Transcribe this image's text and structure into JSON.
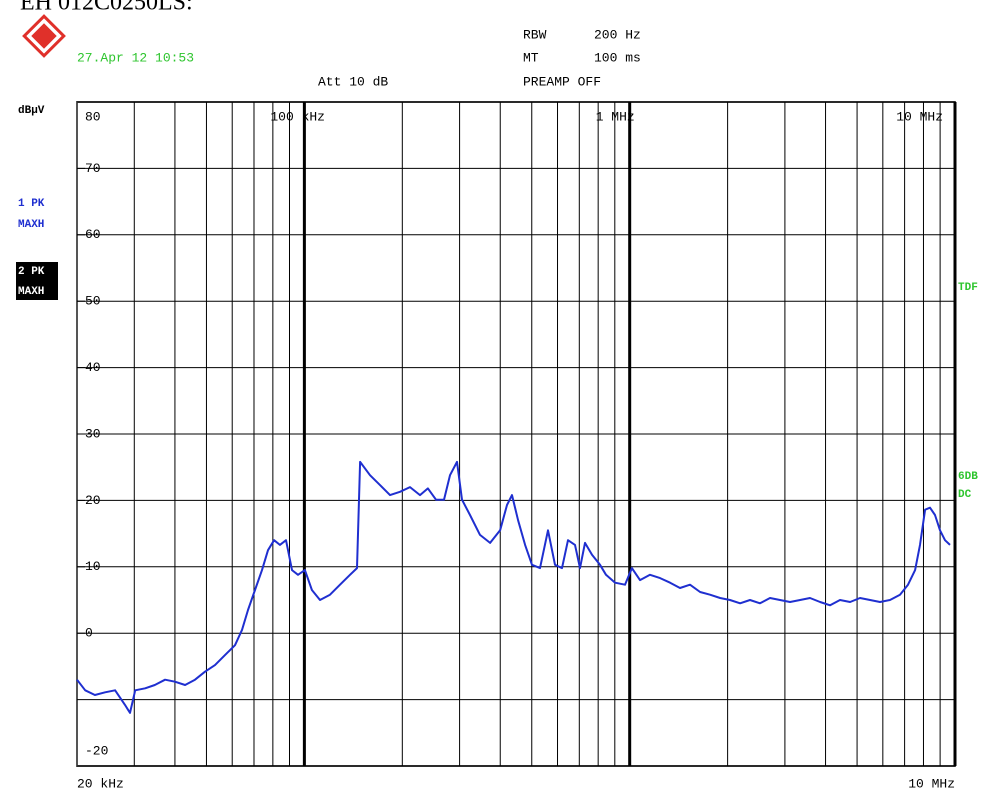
{
  "header": {
    "title": "EH 012C0250LS:",
    "date": "27.Apr 12 10:53",
    "rbw_label": "RBW",
    "rbw_value": "200 Hz",
    "mt_label": "MT",
    "mt_value": "100 ms",
    "att": "Att 10 dB",
    "preamp": "PREAMP OFF"
  },
  "side": {
    "unit": "dBµV",
    "trace1": [
      "1 PK",
      "MAXH"
    ],
    "trace2": [
      "2 PK",
      "MAXH"
    ],
    "tdf": "TDF",
    "detector": [
      "6DB",
      "DC"
    ]
  },
  "chart_data": {
    "type": "line",
    "log_x": true,
    "grid": true,
    "color": "#1f2fd0",
    "xlim": [
      20000,
      10000000
    ],
    "ylim": [
      -20,
      80
    ],
    "start": {
      "value": 20000,
      "label": "20 kHz"
    },
    "stop": {
      "value": 10000000,
      "label": "10 MHz"
    },
    "xticks": [
      {
        "value": 100000,
        "label": "100 kHz"
      },
      {
        "value": 1000000,
        "label": "1 MHz"
      },
      {
        "value": 10000000,
        "label": "10 MHz"
      }
    ],
    "xgrid": [
      30000,
      40000,
      50000,
      60000,
      70000,
      80000,
      90000,
      200000,
      300000,
      400000,
      500000,
      600000,
      700000,
      800000,
      900000,
      2000000,
      3000000,
      4000000,
      5000000,
      6000000,
      7000000,
      8000000,
      9000000
    ],
    "yticks": [
      80,
      70,
      60,
      50,
      40,
      30,
      20,
      10,
      0,
      {
        "value": -10,
        "label": null
      },
      -20
    ],
    "x": [
      20000,
      21200,
      22700,
      24400,
      26200,
      28100,
      29100,
      30200,
      32400,
      34700,
      37300,
      40000,
      43000,
      46100,
      49500,
      53100,
      57000,
      61200,
      64300,
      67100,
      70500,
      74100,
      77300,
      80700,
      84100,
      87800,
      91600,
      95600,
      100400,
      105500,
      111700,
      119900,
      128700,
      138100,
      145100,
      148300,
      159100,
      170800,
      183300,
      196800,
      211200,
      226700,
      239800,
      253800,
      268700,
      280400,
      294600,
      305200,
      323000,
      346700,
      372200,
      399500,
      419700,
      434800,
      453800,
      476900,
      501000,
      530200,
      561000,
      589500,
      619400,
      646300,
      679100,
      703600,
      729000,
      766100,
      810600,
      845800,
      901600,
      967300,
      1016000,
      1076000,
      1155000,
      1240000,
      1331000,
      1428000,
      1533000,
      1646000,
      1766000,
      1896000,
      2034000,
      2184000,
      2344000,
      2516000,
      2700000,
      2898000,
      3111000,
      3340000,
      3584000,
      3848000,
      4130000,
      4432000,
      4758000,
      5106000,
      5482000,
      5882000,
      6314000,
      6776000,
      7172000,
      7538000,
      7808000,
      8090000,
      8380000,
      8682000,
      8994000,
      9318000,
      9654000
    ],
    "values": [
      -7.0,
      -8.6,
      -9.3,
      -8.9,
      -8.6,
      -10.8,
      -12.0,
      -8.6,
      -8.3,
      -7.8,
      -7.0,
      -7.3,
      -7.8,
      -7.0,
      -5.8,
      -4.8,
      -3.3,
      -1.8,
      0.5,
      3.5,
      6.5,
      9.5,
      12.5,
      14.0,
      13.3,
      14.0,
      9.5,
      8.8,
      9.5,
      6.5,
      5.0,
      5.8,
      7.3,
      8.8,
      9.8,
      25.8,
      23.8,
      22.3,
      20.8,
      21.3,
      22.0,
      20.8,
      21.8,
      20.1,
      20.1,
      23.8,
      25.8,
      20.1,
      17.8,
      14.8,
      13.6,
      15.5,
      19.3,
      20.8,
      17.0,
      13.3,
      10.3,
      9.8,
      15.5,
      10.3,
      9.8,
      14.0,
      13.3,
      9.8,
      13.6,
      11.8,
      10.3,
      8.8,
      7.6,
      7.3,
      9.8,
      8.0,
      8.8,
      8.3,
      7.6,
      6.8,
      7.3,
      6.2,
      5.8,
      5.3,
      5.0,
      4.5,
      5.0,
      4.5,
      5.3,
      5.0,
      4.7,
      5.0,
      5.3,
      4.7,
      4.2,
      5.0,
      4.7,
      5.3,
      5.0,
      4.7,
      5.0,
      5.8,
      7.3,
      9.5,
      13.3,
      18.6,
      18.9,
      17.8,
      15.5,
      14.0,
      13.3
    ]
  }
}
